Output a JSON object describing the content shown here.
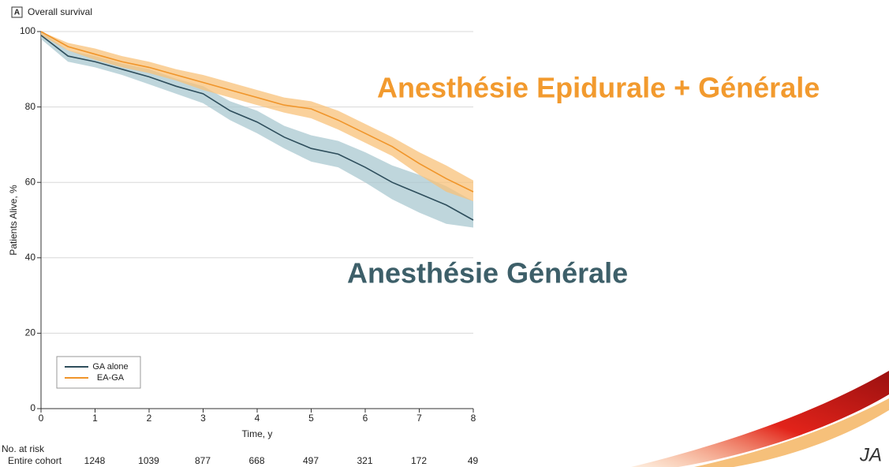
{
  "chart_data": {
    "type": "line",
    "panel_label": "A",
    "title": "Overall survival",
    "ylabel": "Patients Alive, %",
    "xlabel": "Time, y",
    "x": [
      0,
      0.5,
      1,
      1.5,
      2,
      2.5,
      3,
      3.5,
      4,
      4.5,
      5,
      5.5,
      6,
      6.5,
      7,
      7.5,
      8
    ],
    "series": [
      {
        "name": "GA alone",
        "color": "#2e4e5c",
        "band_color": "#a9c8d0",
        "values": [
          99,
          93.5,
          92,
          90,
          88,
          85.5,
          83.5,
          79,
          76,
          72,
          69,
          67.5,
          64,
          60,
          57,
          54,
          50
        ],
        "ci_upper": [
          100,
          95,
          93.5,
          91.5,
          90,
          87.5,
          85.5,
          81.5,
          79,
          75,
          72.5,
          71,
          68,
          64.5,
          62,
          59,
          55
        ],
        "ci_lower": [
          98,
          92,
          90.5,
          88.5,
          86,
          83.5,
          81,
          76.5,
          73,
          69,
          65.5,
          64,
          60,
          55.5,
          52,
          49,
          48
        ]
      },
      {
        "name": "EA-GA",
        "color": "#f0952a",
        "band_color": "#f8c27a",
        "values": [
          100,
          96,
          94,
          92,
          90.5,
          88.5,
          86.5,
          84.5,
          82.5,
          80.5,
          79.5,
          76.5,
          73,
          69.5,
          65,
          61,
          57.5
        ],
        "ci_upper": [
          100,
          97,
          95.5,
          93.5,
          92,
          90,
          88.5,
          86.5,
          84.5,
          82.5,
          81.5,
          79,
          75.5,
          72,
          68,
          64.5,
          60.5
        ],
        "ci_lower": [
          99,
          95,
          92.5,
          90.5,
          89,
          87,
          84.5,
          82.5,
          80.5,
          78.5,
          77,
          74,
          70.5,
          67,
          62,
          57.5,
          55
        ]
      }
    ],
    "xlim": [
      0,
      8
    ],
    "xticks": [
      0,
      1,
      2,
      3,
      4,
      5,
      6,
      7,
      8
    ],
    "ylim": [
      0,
      100
    ],
    "yticks": [
      0,
      20,
      40,
      60,
      80,
      100
    ],
    "grid": true,
    "legend": "lower left",
    "risk_table": {
      "title": "No. at risk",
      "row_label": "Entire cohort",
      "counts": [
        1248,
        1039,
        877,
        668,
        497,
        321,
        172,
        49
      ]
    },
    "annotations": [
      {
        "text": "Anesthésie Epidurale + Générale",
        "color": "#f29a2e"
      },
      {
        "text": "Anesthésie Générale",
        "color": "#3d5f69"
      }
    ],
    "logo_text": "JA"
  }
}
